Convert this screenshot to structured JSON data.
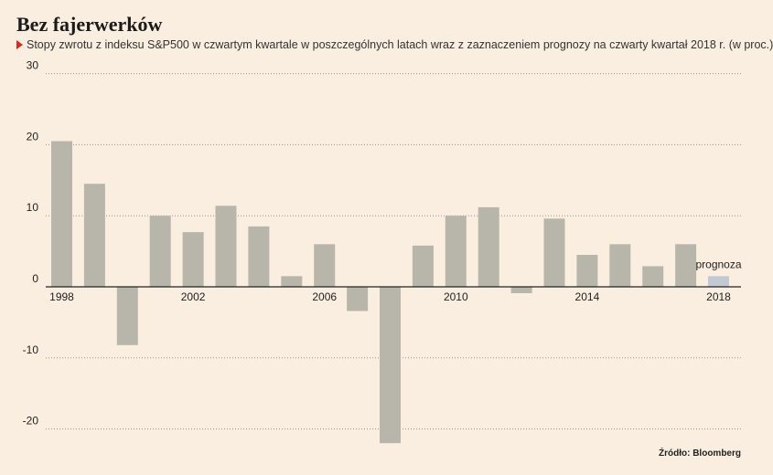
{
  "colors": {
    "background": "#faeee0",
    "bar": "#b8b6aa",
    "forecast_bar": "#c2c8d4",
    "marker": "#d22b1e",
    "grid": "#9a968e",
    "axis": "#222222"
  },
  "chart_data": {
    "type": "bar",
    "title": "Bez fajerwerków",
    "subtitle": "Stopy zwrotu z indeksu S&P500 w czwartym kwartale w poszczególnych latach wraz z zaznaczeniem prognozy na czwarty kwartał 2018 r. (w proc.)",
    "source": "Źródło: Bloomberg",
    "categories": [
      1998,
      1999,
      2000,
      2001,
      2002,
      2003,
      2004,
      2005,
      2006,
      2007,
      2008,
      2009,
      2010,
      2011,
      2012,
      2013,
      2014,
      2015,
      2016,
      2017,
      2018
    ],
    "values": [
      20.5,
      14.5,
      -8.2,
      10.0,
      7.7,
      11.4,
      8.5,
      1.5,
      6.0,
      -3.4,
      -22.0,
      5.8,
      10.0,
      11.2,
      -0.9,
      9.6,
      4.5,
      6.0,
      2.9,
      6.0,
      1.5
    ],
    "forecast_index": 20,
    "annotation": "prognoza",
    "x_tick_labels": [
      "1998",
      "2002",
      "2006",
      "2010",
      "2014",
      "2018"
    ],
    "y_ticks": [
      30,
      20,
      10,
      0,
      -10,
      -20
    ],
    "ylim": [
      -22,
      30
    ],
    "grid": true,
    "legend": "none"
  }
}
